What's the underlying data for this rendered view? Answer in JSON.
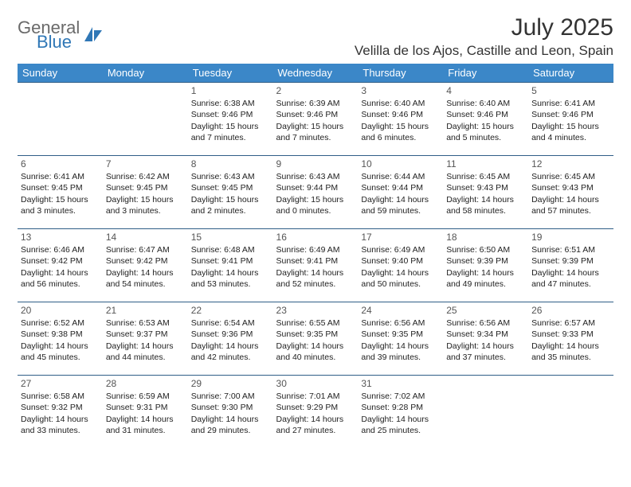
{
  "logo": {
    "general": "General",
    "blue": "Blue"
  },
  "title": "July 2025",
  "location": "Velilla de los Ajos, Castille and Leon, Spain",
  "colors": {
    "header_bg": "#3b87c8",
    "header_text": "#ffffff",
    "row_border": "#2f5e87",
    "logo_gray": "#6a6a6a",
    "logo_blue": "#2f77b6",
    "body_text": "#222222"
  },
  "dayHeaders": [
    "Sunday",
    "Monday",
    "Tuesday",
    "Wednesday",
    "Thursday",
    "Friday",
    "Saturday"
  ],
  "weeks": [
    [
      null,
      null,
      {
        "n": "1",
        "sr": "Sunrise: 6:38 AM",
        "ss": "Sunset: 9:46 PM",
        "dl": "Daylight: 15 hours and 7 minutes."
      },
      {
        "n": "2",
        "sr": "Sunrise: 6:39 AM",
        "ss": "Sunset: 9:46 PM",
        "dl": "Daylight: 15 hours and 7 minutes."
      },
      {
        "n": "3",
        "sr": "Sunrise: 6:40 AM",
        "ss": "Sunset: 9:46 PM",
        "dl": "Daylight: 15 hours and 6 minutes."
      },
      {
        "n": "4",
        "sr": "Sunrise: 6:40 AM",
        "ss": "Sunset: 9:46 PM",
        "dl": "Daylight: 15 hours and 5 minutes."
      },
      {
        "n": "5",
        "sr": "Sunrise: 6:41 AM",
        "ss": "Sunset: 9:46 PM",
        "dl": "Daylight: 15 hours and 4 minutes."
      }
    ],
    [
      {
        "n": "6",
        "sr": "Sunrise: 6:41 AM",
        "ss": "Sunset: 9:45 PM",
        "dl": "Daylight: 15 hours and 3 minutes."
      },
      {
        "n": "7",
        "sr": "Sunrise: 6:42 AM",
        "ss": "Sunset: 9:45 PM",
        "dl": "Daylight: 15 hours and 3 minutes."
      },
      {
        "n": "8",
        "sr": "Sunrise: 6:43 AM",
        "ss": "Sunset: 9:45 PM",
        "dl": "Daylight: 15 hours and 2 minutes."
      },
      {
        "n": "9",
        "sr": "Sunrise: 6:43 AM",
        "ss": "Sunset: 9:44 PM",
        "dl": "Daylight: 15 hours and 0 minutes."
      },
      {
        "n": "10",
        "sr": "Sunrise: 6:44 AM",
        "ss": "Sunset: 9:44 PM",
        "dl": "Daylight: 14 hours and 59 minutes."
      },
      {
        "n": "11",
        "sr": "Sunrise: 6:45 AM",
        "ss": "Sunset: 9:43 PM",
        "dl": "Daylight: 14 hours and 58 minutes."
      },
      {
        "n": "12",
        "sr": "Sunrise: 6:45 AM",
        "ss": "Sunset: 9:43 PM",
        "dl": "Daylight: 14 hours and 57 minutes."
      }
    ],
    [
      {
        "n": "13",
        "sr": "Sunrise: 6:46 AM",
        "ss": "Sunset: 9:42 PM",
        "dl": "Daylight: 14 hours and 56 minutes."
      },
      {
        "n": "14",
        "sr": "Sunrise: 6:47 AM",
        "ss": "Sunset: 9:42 PM",
        "dl": "Daylight: 14 hours and 54 minutes."
      },
      {
        "n": "15",
        "sr": "Sunrise: 6:48 AM",
        "ss": "Sunset: 9:41 PM",
        "dl": "Daylight: 14 hours and 53 minutes."
      },
      {
        "n": "16",
        "sr": "Sunrise: 6:49 AM",
        "ss": "Sunset: 9:41 PM",
        "dl": "Daylight: 14 hours and 52 minutes."
      },
      {
        "n": "17",
        "sr": "Sunrise: 6:49 AM",
        "ss": "Sunset: 9:40 PM",
        "dl": "Daylight: 14 hours and 50 minutes."
      },
      {
        "n": "18",
        "sr": "Sunrise: 6:50 AM",
        "ss": "Sunset: 9:39 PM",
        "dl": "Daylight: 14 hours and 49 minutes."
      },
      {
        "n": "19",
        "sr": "Sunrise: 6:51 AM",
        "ss": "Sunset: 9:39 PM",
        "dl": "Daylight: 14 hours and 47 minutes."
      }
    ],
    [
      {
        "n": "20",
        "sr": "Sunrise: 6:52 AM",
        "ss": "Sunset: 9:38 PM",
        "dl": "Daylight: 14 hours and 45 minutes."
      },
      {
        "n": "21",
        "sr": "Sunrise: 6:53 AM",
        "ss": "Sunset: 9:37 PM",
        "dl": "Daylight: 14 hours and 44 minutes."
      },
      {
        "n": "22",
        "sr": "Sunrise: 6:54 AM",
        "ss": "Sunset: 9:36 PM",
        "dl": "Daylight: 14 hours and 42 minutes."
      },
      {
        "n": "23",
        "sr": "Sunrise: 6:55 AM",
        "ss": "Sunset: 9:35 PM",
        "dl": "Daylight: 14 hours and 40 minutes."
      },
      {
        "n": "24",
        "sr": "Sunrise: 6:56 AM",
        "ss": "Sunset: 9:35 PM",
        "dl": "Daylight: 14 hours and 39 minutes."
      },
      {
        "n": "25",
        "sr": "Sunrise: 6:56 AM",
        "ss": "Sunset: 9:34 PM",
        "dl": "Daylight: 14 hours and 37 minutes."
      },
      {
        "n": "26",
        "sr": "Sunrise: 6:57 AM",
        "ss": "Sunset: 9:33 PM",
        "dl": "Daylight: 14 hours and 35 minutes."
      }
    ],
    [
      {
        "n": "27",
        "sr": "Sunrise: 6:58 AM",
        "ss": "Sunset: 9:32 PM",
        "dl": "Daylight: 14 hours and 33 minutes."
      },
      {
        "n": "28",
        "sr": "Sunrise: 6:59 AM",
        "ss": "Sunset: 9:31 PM",
        "dl": "Daylight: 14 hours and 31 minutes."
      },
      {
        "n": "29",
        "sr": "Sunrise: 7:00 AM",
        "ss": "Sunset: 9:30 PM",
        "dl": "Daylight: 14 hours and 29 minutes."
      },
      {
        "n": "30",
        "sr": "Sunrise: 7:01 AM",
        "ss": "Sunset: 9:29 PM",
        "dl": "Daylight: 14 hours and 27 minutes."
      },
      {
        "n": "31",
        "sr": "Sunrise: 7:02 AM",
        "ss": "Sunset: 9:28 PM",
        "dl": "Daylight: 14 hours and 25 minutes."
      },
      null,
      null
    ]
  ]
}
